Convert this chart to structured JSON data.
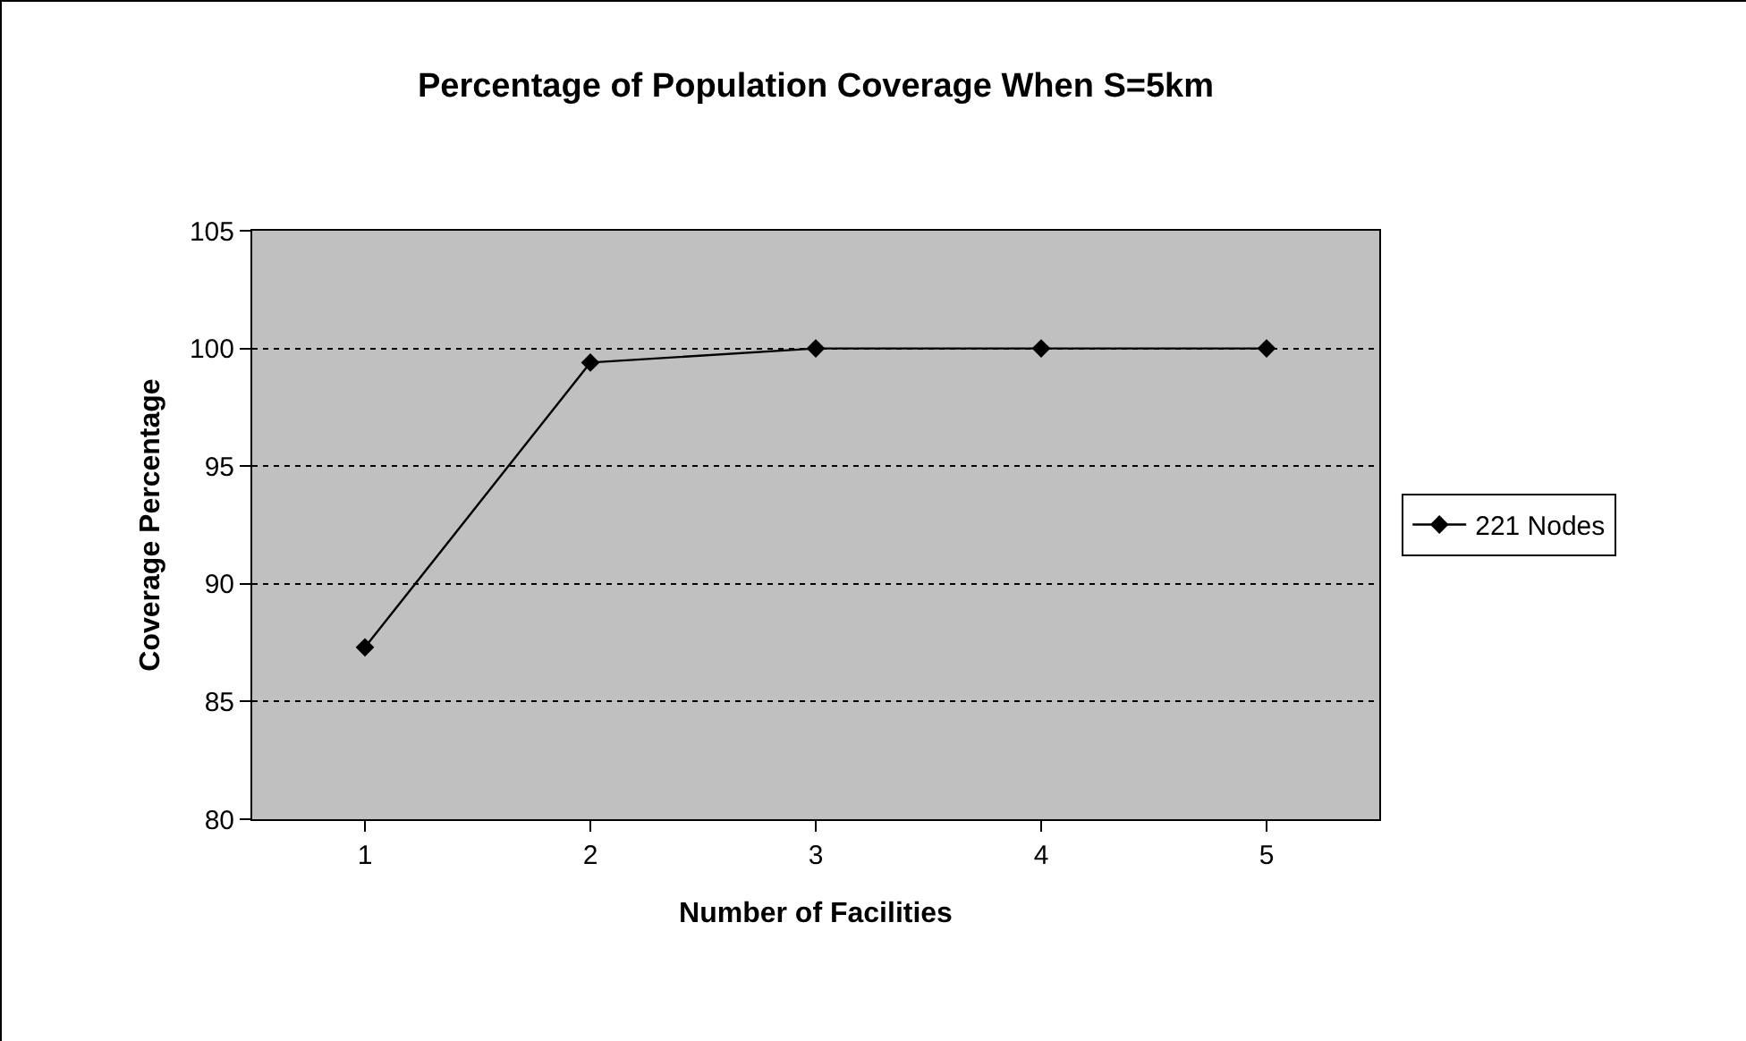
{
  "chart_data": {
    "type": "line",
    "title": "Percentage of Population Coverage When S=5km",
    "xlabel": "Number of Facilities",
    "ylabel": "Coverage Percentage",
    "categories": [
      "1",
      "2",
      "3",
      "4",
      "5"
    ],
    "series": [
      {
        "name": "221 Nodes",
        "color": "#000000",
        "values": [
          87.3,
          99.4,
          100,
          100,
          100
        ]
      }
    ],
    "ylim": [
      80,
      105
    ],
    "yticks": [
      80,
      85,
      90,
      95,
      100,
      105
    ],
    "grid": "y",
    "legend": "right",
    "marker": "diamond",
    "line_style": "solid"
  }
}
